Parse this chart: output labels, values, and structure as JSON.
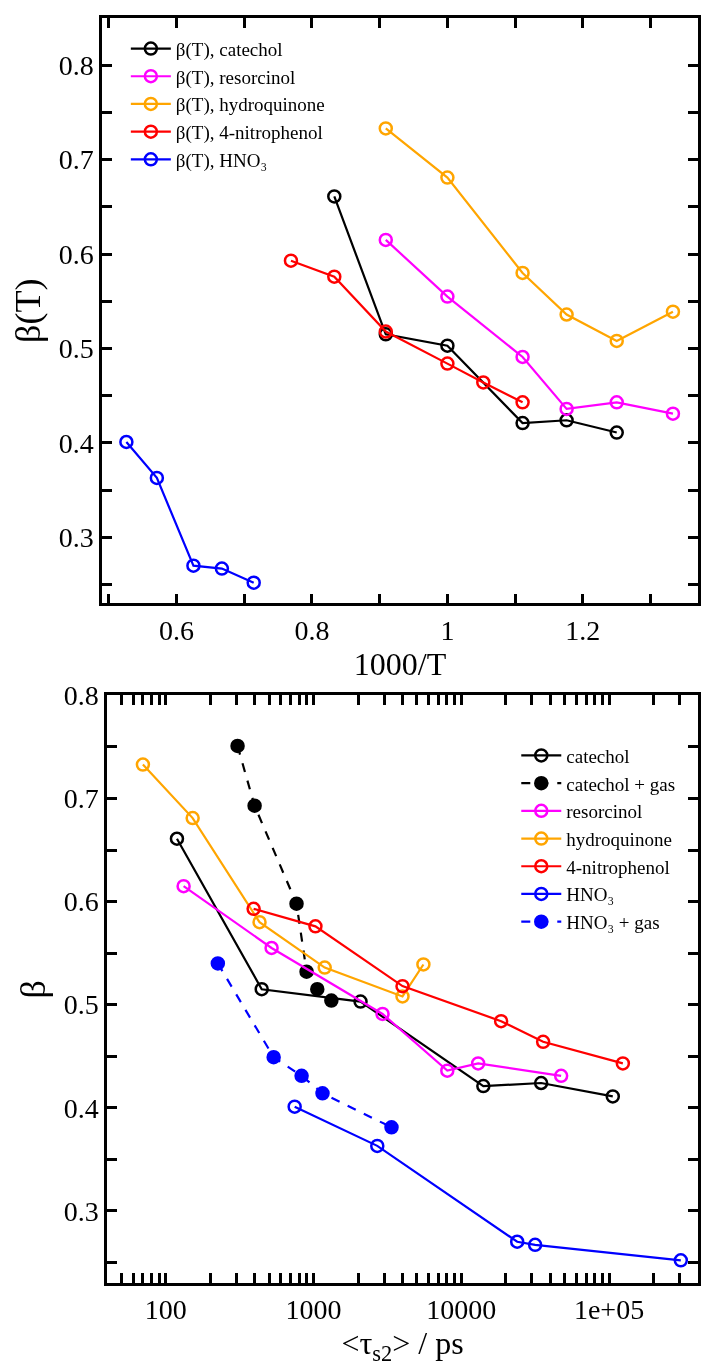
{
  "chart_data": [
    {
      "type": "line",
      "xlabel": "1000/T",
      "ylabel": "β(T)",
      "xlim": [
        0.49,
        1.37
      ],
      "ylim": [
        0.23,
        0.85
      ],
      "xticks": [
        {
          "value": 0.5,
          "label": null
        },
        0.6,
        {
          "value": 0.7,
          "label": null
        },
        0.8,
        {
          "value": 0.9,
          "label": null
        },
        1,
        {
          "value": 1.1,
          "label": null
        },
        1.2,
        {
          "value": 1.3,
          "label": null
        }
      ],
      "yticks": [
        {
          "value": 0.25,
          "label": null
        },
        0.3,
        {
          "value": 0.35,
          "label": null
        },
        0.4,
        {
          "value": 0.45,
          "label": null
        },
        0.5,
        {
          "value": 0.55,
          "label": null
        },
        0.6,
        {
          "value": 0.65,
          "label": null
        },
        0.7,
        {
          "value": 0.75,
          "label": null
        },
        0.8
      ],
      "marker": "circle",
      "line_style": "solid",
      "legend": "top left",
      "series": [
        {
          "name": "β(T), catechol",
          "color": "#000000",
          "x": [
            0.833,
            0.909,
            1.0,
            1.111,
            1.176,
            1.25
          ],
          "values": [
            0.661,
            0.515,
            0.503,
            0.421,
            0.424,
            0.411
          ]
        },
        {
          "name": "β(T), resorcinol",
          "color": "#ff00ff",
          "x": [
            0.909,
            1.0,
            1.111,
            1.176,
            1.25,
            1.333
          ],
          "values": [
            0.615,
            0.555,
            0.491,
            0.436,
            0.443,
            0.431
          ]
        },
        {
          "name": "β(T), hydroquinone",
          "color": "#ffa500",
          "x": [
            0.909,
            1.0,
            1.111,
            1.176,
            1.25,
            1.333
          ],
          "values": [
            0.733,
            0.681,
            0.58,
            0.536,
            0.508,
            0.539
          ]
        },
        {
          "name": "β(T), 4-nitrophenol",
          "color": "#ff0000",
          "x": [
            0.769,
            0.833,
            0.909,
            1.0,
            1.053,
            1.111
          ],
          "values": [
            0.593,
            0.576,
            0.518,
            0.484,
            0.464,
            0.443
          ]
        },
        {
          "name": "β(T), HNO₃",
          "color": "#0000ff",
          "x": [
            0.526,
            0.571,
            0.625,
            0.667,
            0.714
          ],
          "values": [
            0.401,
            0.363,
            0.27,
            0.267,
            0.252
          ]
        }
      ]
    },
    {
      "type": "line",
      "xlabel": "<τ$_{s2}$> / ps",
      "ylabel": "β",
      "log": "x",
      "xlim": [
        40,
        400000
      ],
      "ylim": [
        0.23,
        0.8
      ],
      "xticks": [
        100,
        1000,
        10000,
        {
          "value": 100000,
          "label": "1e+05"
        }
      ],
      "yticks": [
        {
          "value": 0.25,
          "label": null
        },
        0.3,
        {
          "value": 0.35,
          "label": null
        },
        0.4,
        {
          "value": 0.45,
          "label": null
        },
        0.5,
        {
          "value": 0.55,
          "label": null
        },
        0.6,
        {
          "value": 0.65,
          "label": null
        },
        0.7,
        {
          "value": 0.75,
          "label": null
        },
        0.8
      ],
      "marker": "circle",
      "legend": "top right",
      "series": [
        {
          "name": "catechol",
          "color": "#000000",
          "line_style": "solid",
          "x": [
            119,
            446,
            2080,
            14100,
            34700,
            106000
          ],
          "values": [
            0.661,
            0.515,
            0.503,
            0.421,
            0.424,
            0.411
          ]
        },
        {
          "name": "catechol + gas",
          "color": "#000000",
          "line_style": "dashed",
          "x": [
            306,
            399,
            767,
            897,
            1060,
            1320
          ],
          "values": [
            0.751,
            0.693,
            0.598,
            0.532,
            0.515,
            0.504
          ]
        },
        {
          "name": "resorcinol",
          "color": "#ff00ff",
          "line_style": "solid",
          "x": [
            132,
            520,
            2930,
            8040,
            13000,
            47400
          ],
          "values": [
            0.615,
            0.555,
            0.491,
            0.436,
            0.443,
            0.431
          ]
        },
        {
          "name": "hydroquinone",
          "color": "#ffa500",
          "line_style": "solid",
          "x": [
            70,
            152,
            431,
            1190,
            4000,
            5540
          ],
          "values": [
            0.733,
            0.681,
            0.58,
            0.536,
            0.508,
            0.539
          ]
        },
        {
          "name": "4-nitrophenol",
          "color": "#ff0000",
          "line_style": "solid",
          "x": [
            393,
            1030,
            4000,
            18600,
            35800,
            124000
          ],
          "values": [
            0.593,
            0.576,
            0.518,
            0.484,
            0.464,
            0.443
          ]
        },
        {
          "name": "HNO₃",
          "color": "#0000ff",
          "line_style": "solid",
          "x": [
            745,
            2700,
            23900,
            31600,
            306000
          ],
          "values": [
            0.401,
            0.363,
            0.27,
            0.267,
            0.252
          ]
        },
        {
          "name": "HNO₃ + gas",
          "color": "#0000ff",
          "line_style": "dashed",
          "x": [
            225,
            537,
            830,
            1150,
            3370
          ],
          "values": [
            0.54,
            0.449,
            0.431,
            0.414,
            0.381
          ]
        }
      ]
    }
  ]
}
